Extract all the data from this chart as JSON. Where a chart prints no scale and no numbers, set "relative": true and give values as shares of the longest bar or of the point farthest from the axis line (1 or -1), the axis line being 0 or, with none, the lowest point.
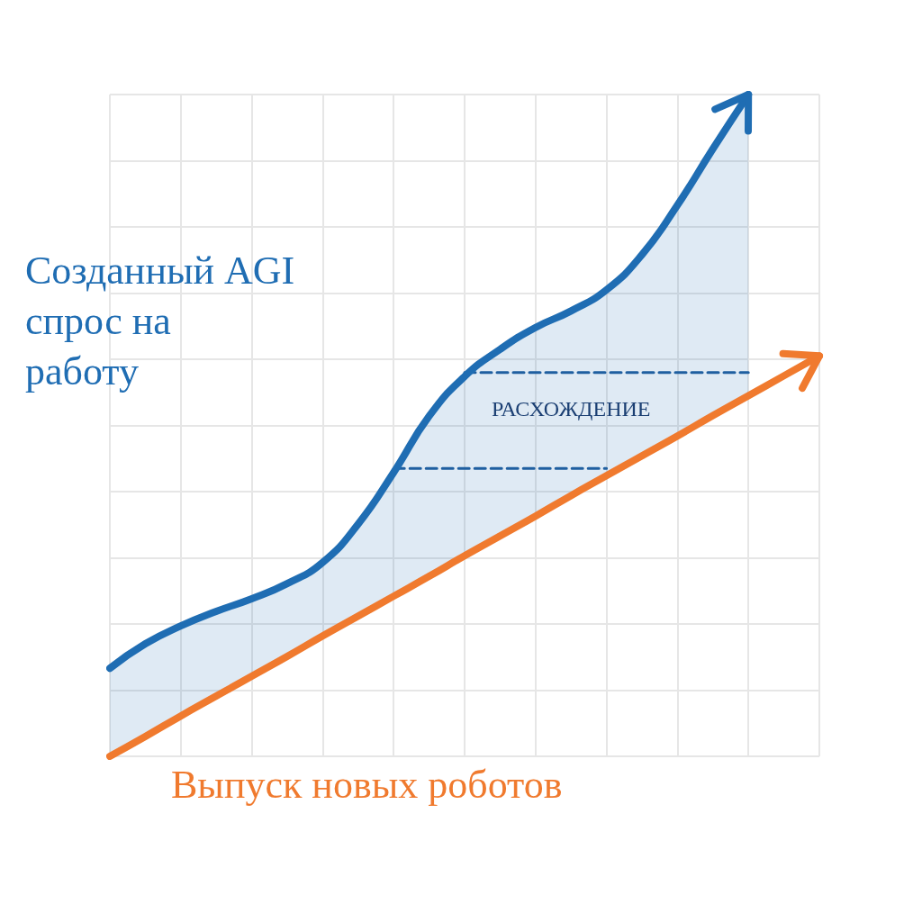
{
  "chart_data": {
    "type": "line",
    "relative": true,
    "grid": true,
    "legend": false,
    "marker": "none",
    "line_style": "solid",
    "categories": [
      null,
      null,
      null,
      null,
      null,
      null,
      null,
      null,
      null,
      null,
      null,
      null,
      null,
      null,
      null,
      null,
      null,
      null,
      null,
      null,
      null
    ],
    "annotations": [
      "РАСХОЖДЕНИЕ"
    ],
    "series": [
      {
        "name": "Созданный AGI спрос на работу",
        "color": "#1f6db3",
        "values": [
          0.133,
          0.17,
          0.197,
          0.219,
          0.238,
          0.261,
          0.293,
          0.351,
          0.429,
          0.514,
          0.574,
          0.615,
          0.648,
          0.673,
          0.705,
          0.758,
          0.833,
          0.918,
          1,
          null,
          null
        ],
        "lower": [
          0,
          0.03,
          0.061,
          0.091,
          0.121,
          0.151,
          0.182,
          0.212,
          0.242,
          0.272,
          0.303,
          0.333,
          0.363,
          0.394,
          0.424,
          0.454,
          0.484,
          0.515,
          0.545,
          null,
          null
        ],
        "upper": [
          0.133,
          0.17,
          0.197,
          0.219,
          0.238,
          0.261,
          0.293,
          0.351,
          0.429,
          0.514,
          0.574,
          0.615,
          0.648,
          0.673,
          0.705,
          0.758,
          0.833,
          0.918,
          1,
          null,
          null
        ]
      },
      {
        "name": "Выпуск новых роботов",
        "color": "#f07a2e",
        "values": [
          0,
          0.03,
          0.061,
          0.091,
          0.121,
          0.151,
          0.182,
          0.212,
          0.242,
          0.272,
          0.303,
          0.333,
          0.363,
          0.394,
          0.424,
          0.454,
          0.484,
          0.515,
          0.545,
          0.575,
          0.605
        ]
      },
      {
        "color": "#1f5fa0",
        "line_style": "dashed",
        "values": [
          null,
          null,
          null,
          null,
          null,
          null,
          null,
          null,
          null,
          null,
          0.58,
          0.58,
          0.58,
          0.58,
          0.58,
          0.58,
          0.58,
          0.58,
          0.58,
          null,
          null
        ]
      },
      {
        "color": "#1f5fa0",
        "line_style": "dashed",
        "values": [
          null,
          null,
          null,
          null,
          null,
          null,
          null,
          null,
          0.435,
          0.435,
          0.435,
          0.435,
          0.435,
          0.435,
          0.435,
          null,
          null,
          null,
          null,
          null,
          null
        ]
      }
    ]
  }
}
